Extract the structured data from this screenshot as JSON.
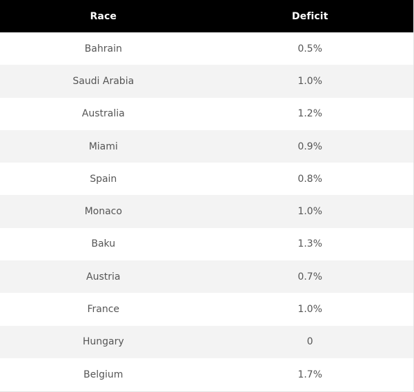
{
  "table": {
    "headers": [
      "Race",
      "Deficit"
    ],
    "rows": [
      [
        "Bahrain",
        "0.5%"
      ],
      [
        "Saudi Arabia",
        "1.0%"
      ],
      [
        "Australia",
        "1.2%"
      ],
      [
        "Miami",
        "0.9%"
      ],
      [
        "Spain",
        "0.8%"
      ],
      [
        "Monaco",
        "1.0%"
      ],
      [
        "Baku",
        "1.3%"
      ],
      [
        "Austria",
        "0.7%"
      ],
      [
        "France",
        "1.0%"
      ],
      [
        "Hungary",
        "0"
      ],
      [
        "Belgium",
        "1.7%"
      ]
    ]
  },
  "colors": {
    "header_bg": "#000000",
    "header_text": "#ffffff",
    "row_alt_bg": "#f3f3f3",
    "cell_text": "#555555"
  }
}
